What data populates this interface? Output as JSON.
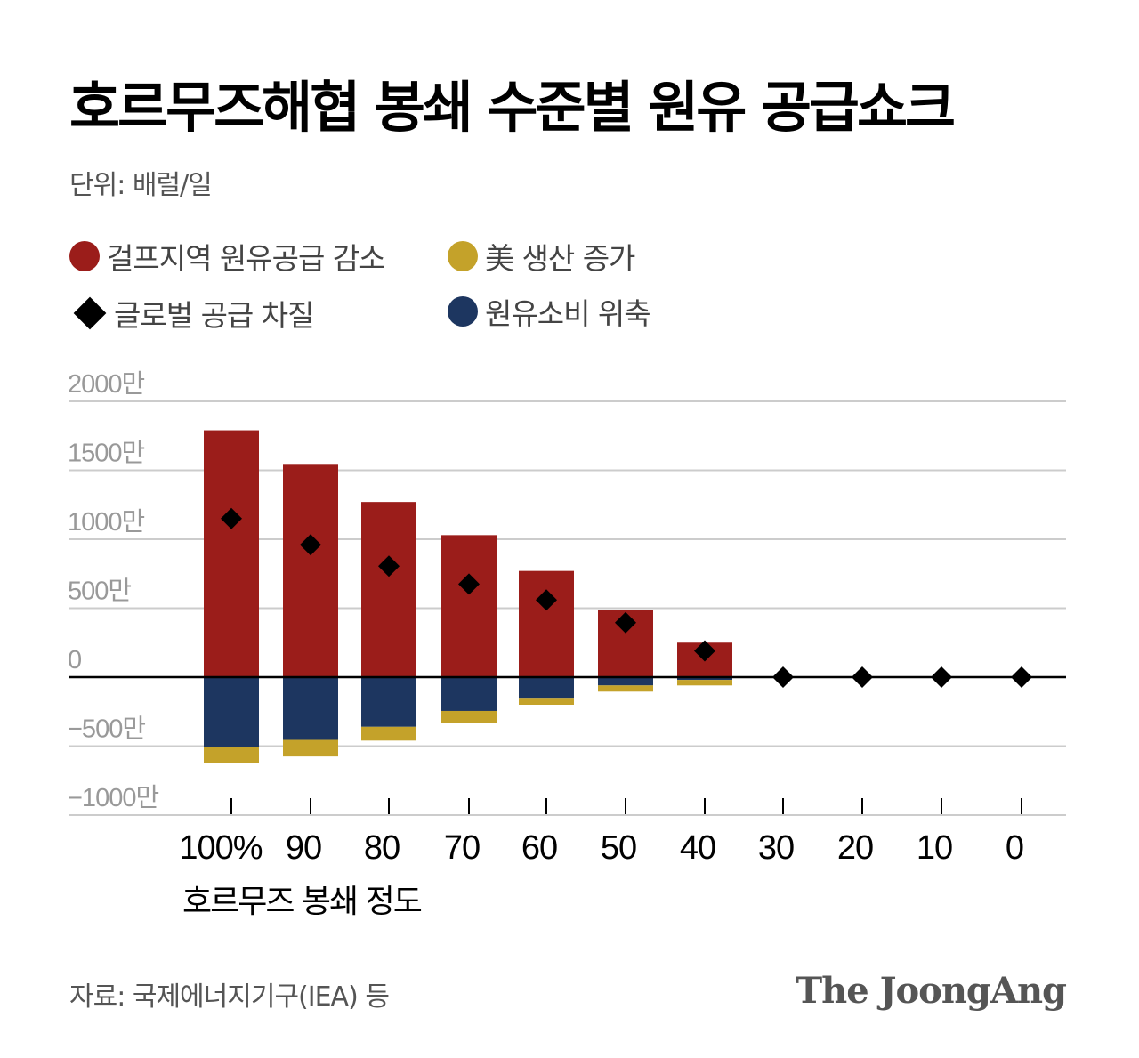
{
  "title": "호르무즈해협 봉쇄 수준별 원유 공급쇼크",
  "unit": "단위: 배럴/일",
  "legend": [
    {
      "label": "걸프지역 원유공급 감소",
      "color": "#9b1d1a",
      "shape": "circle"
    },
    {
      "label": "美 생산 증가",
      "color": "#c4a22a",
      "shape": "circle"
    },
    {
      "label": "글로벌 공급 차질",
      "color": "#000000",
      "shape": "diamond"
    },
    {
      "label": "원유소비 위축",
      "color": "#1d3660",
      "shape": "circle"
    }
  ],
  "source": "자료: 국제에너지기구(IEA) 등",
  "brand": "The JoongAng",
  "chart_data": {
    "type": "bar",
    "stacked": true,
    "xlabel": "호르무즈 봉쇄 정도",
    "categories": [
      "100%",
      "90",
      "80",
      "70",
      "60",
      "50",
      "40",
      "30",
      "20",
      "10",
      "0"
    ],
    "ylim": [
      -1000,
      2000
    ],
    "yunit": "만 배럴/일",
    "yticks": [
      {
        "v": 2000,
        "label": "2000만"
      },
      {
        "v": 1500,
        "label": "1500만"
      },
      {
        "v": 1000,
        "label": "1000만"
      },
      {
        "v": 500,
        "label": "500만"
      },
      {
        "v": 0,
        "label": "0"
      },
      {
        "v": -500,
        "label": "−500만"
      },
      {
        "v": -1000,
        "label": "−1000만"
      }
    ],
    "grid": true,
    "series": [
      {
        "name": "걸프지역 원유공급 감소",
        "color": "#9b1d1a",
        "values": [
          1790,
          1540,
          1270,
          1030,
          770,
          490,
          250,
          0,
          0,
          0,
          0
        ]
      },
      {
        "name": "원유소비 위축",
        "color": "#1d3660",
        "values": [
          -505,
          -455,
          -360,
          -245,
          -150,
          -60,
          -20,
          0,
          0,
          0,
          0
        ]
      },
      {
        "name": "美 생산 증가",
        "color": "#c4a22a",
        "values": [
          -120,
          -120,
          -100,
          -85,
          -50,
          -45,
          -40,
          0,
          0,
          0,
          0
        ]
      },
      {
        "name": "글로벌 공급 차질",
        "type": "scatter",
        "marker": "diamond",
        "color": "#000000",
        "values": [
          1150,
          960,
          805,
          675,
          560,
          395,
          190,
          0,
          0,
          0,
          0
        ]
      }
    ]
  }
}
